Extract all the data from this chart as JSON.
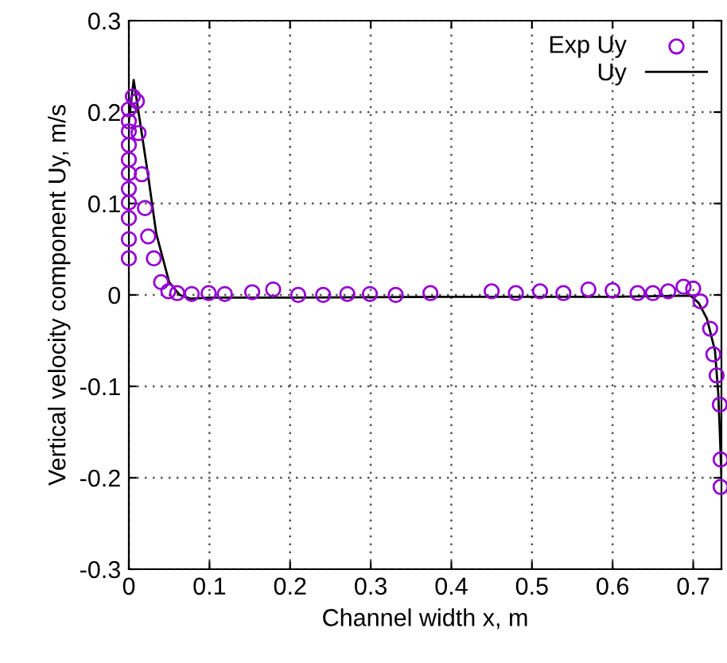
{
  "chart_data": {
    "type": "scatter",
    "xlabel": "Channel width x, m",
    "ylabel": "Vertical velocity component Uy, m/s",
    "xlim": [
      0,
      0.735
    ],
    "xticks": [
      0,
      0.1,
      0.2,
      0.3,
      0.4,
      0.5,
      0.6,
      0.7
    ],
    "ylim": [
      -0.3,
      0.3
    ],
    "yticks": [
      -0.3,
      -0.2,
      -0.1,
      0,
      0.1,
      0.2,
      0.3
    ],
    "grid": true,
    "legend": "top right",
    "series": [
      {
        "name": "Exp Uy",
        "marker": "circle",
        "color": "#9400d3",
        "x": [
          0,
          0,
          0,
          0,
          0,
          0,
          0,
          0,
          0,
          0,
          0,
          0.005,
          0.01,
          0.012,
          0.016,
          0.02,
          0.024,
          0.031,
          0.04,
          0.049,
          0.06,
          0.078,
          0.099,
          0.119,
          0.153,
          0.179,
          0.21,
          0.241,
          0.271,
          0.299,
          0.331,
          0.374,
          0.45,
          0.48,
          0.51,
          0.539,
          0.57,
          0.6,
          0.631,
          0.65,
          0.669,
          0.688,
          0.7,
          0.709,
          0.721,
          0.725,
          0.729,
          0.733,
          0.734,
          0.734
        ],
        "values": [
          0.04,
          0.061,
          0.084,
          0.101,
          0.116,
          0.133,
          0.148,
          0.164,
          0.179,
          0.19,
          0.203,
          0.217,
          0.212,
          0.177,
          0.132,
          0.095,
          0.064,
          0.04,
          0.014,
          0.004,
          0.002,
          0.001,
          0.002,
          0.001,
          0.003,
          0.006,
          0.0,
          0.0,
          0.001,
          0.001,
          0.0,
          0.002,
          0.004,
          0.002,
          0.004,
          0.002,
          0.006,
          0.005,
          0.002,
          0.002,
          0.004,
          0.009,
          0.007,
          -0.007,
          -0.037,
          -0.065,
          -0.088,
          -0.12,
          -0.18,
          -0.21
        ]
      },
      {
        "name": "Uy",
        "type": "line",
        "line_style": "solid",
        "color": "#000000",
        "x": [
          0,
          0.006,
          0.012,
          0.018,
          0.024,
          0.034,
          0.05,
          0.063,
          0.076,
          0.1,
          0.2,
          0.4,
          0.6,
          0.68,
          0.697,
          0.707,
          0.717,
          0.727,
          0.731,
          0.733,
          0.735
        ],
        "values": [
          0.19,
          0.235,
          0.2,
          0.165,
          0.13,
          0.067,
          0.014,
          0.0,
          -0.004,
          -0.003,
          -0.003,
          -0.002,
          -0.002,
          -0.001,
          -0.001,
          -0.009,
          -0.026,
          -0.061,
          -0.107,
          -0.15,
          -0.2
        ]
      }
    ]
  }
}
